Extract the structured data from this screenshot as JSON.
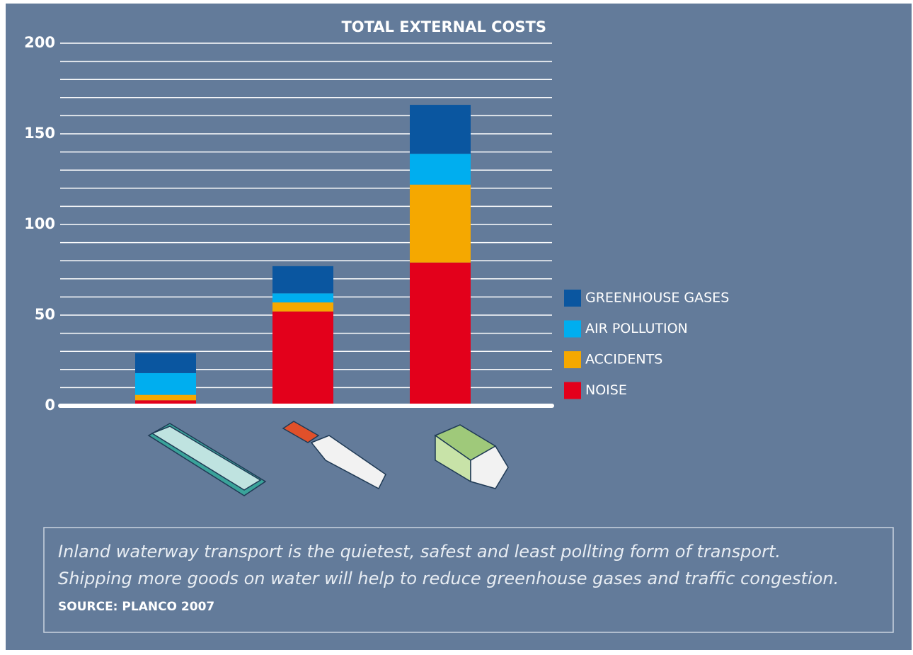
{
  "chart_data": {
    "type": "stacked_bar",
    "title": "TOTAL EXTERNAL COSTS",
    "categories": [
      null,
      null,
      null
    ],
    "series": [
      {
        "name": "NOISE",
        "color": "#e3001b",
        "values": [
          3,
          52,
          79
        ]
      },
      {
        "name": "ACCIDENTS",
        "color": "#f5a800",
        "values": [
          3,
          5,
          43
        ]
      },
      {
        "name": "AIR POLLUTION",
        "color": "#00aeef",
        "values": [
          12,
          5,
          17
        ]
      },
      {
        "name": "GREENHOUSE GASES",
        "color": "#0a56a0",
        "values": [
          11,
          15,
          27
        ]
      }
    ],
    "ylim": [
      0,
      200
    ],
    "yticks": [
      0,
      50,
      100,
      150,
      200
    ],
    "grid": true,
    "caption": [
      "Inland waterway transport is the quietest, safest and least pollting form of transport.",
      "Shipping more goods on water will help to reduce greenhouse gases and traffic congestion."
    ],
    "source": "SOURCE: PLANCO 2007"
  }
}
